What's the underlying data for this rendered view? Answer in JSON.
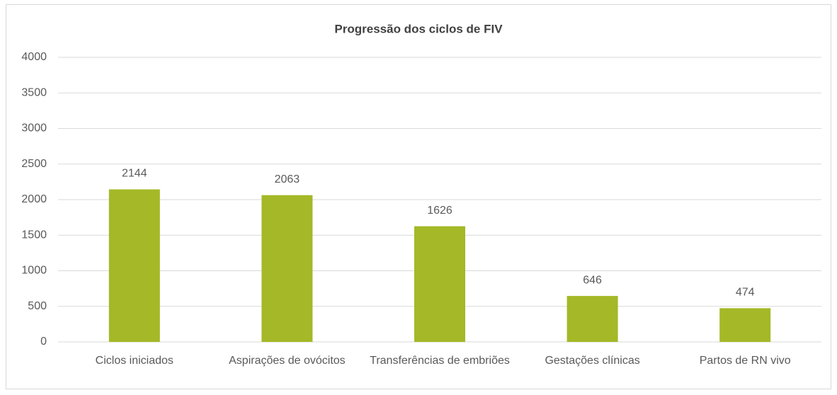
{
  "chart_data": {
    "type": "bar",
    "title": "Progressão dos ciclos de FIV",
    "categories": [
      "Ciclos iniciados",
      "Aspirações de ovócitos",
      "Transferências de embriões",
      "Gestações clínicas",
      "Partos de RN vivo"
    ],
    "values": [
      2144,
      2063,
      1626,
      646,
      474
    ],
    "color": "#a5b827",
    "ylim": [
      0,
      4000
    ],
    "yticks": [
      0,
      500,
      1000,
      1500,
      2000,
      2500,
      3000,
      3500,
      4000
    ],
    "grid": true,
    "data_labels": true
  }
}
